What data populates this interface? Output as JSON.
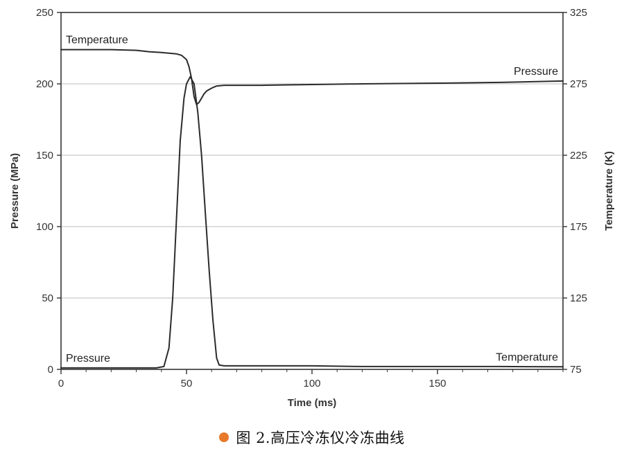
{
  "caption": {
    "text": "图 2.高压冷冻仪冷冻曲线",
    "bullet_color": "#e8782a"
  },
  "colors": {
    "line": "#2b2b2b",
    "axis": "#333333",
    "grid": "#bbbbbb",
    "plot_background": "#ffffff"
  },
  "chart_data": {
    "type": "line",
    "title": "",
    "xlabel": "Time (ms)",
    "ylabel": "Pressure (MPa)",
    "y2label": "Temperature (K)",
    "xlim": [
      0,
      200
    ],
    "ylim": [
      0,
      250
    ],
    "y2lim": [
      75,
      325
    ],
    "x_ticks": [
      0,
      50,
      100,
      150
    ],
    "y_ticks": [
      0,
      50,
      100,
      150,
      200,
      250
    ],
    "y2_ticks": [
      75,
      125,
      175,
      225,
      275,
      325
    ],
    "grid": true,
    "grid_axis": "y",
    "series": [
      {
        "name": "Pressure",
        "axis": "left",
        "x": [
          0,
          10,
          20,
          30,
          38,
          41,
          43,
          44.5,
          46,
          47.5,
          49,
          50,
          51.5,
          53,
          54.5,
          56,
          57.5,
          59,
          60.5,
          62,
          63,
          65,
          70,
          80,
          100,
          120,
          150,
          175,
          200
        ],
        "y": [
          1,
          1,
          1,
          1,
          1,
          2,
          15,
          50,
          105,
          160,
          190,
          200,
          205,
          200,
          180,
          150,
          110,
          70,
          35,
          8,
          3,
          2.5,
          2.5,
          2.5,
          2.5,
          2,
          2,
          2,
          1.8
        ]
      },
      {
        "name": "Temperature",
        "axis": "right",
        "x": [
          0,
          10,
          20,
          30,
          35,
          40,
          43,
          46,
          48,
          50,
          51,
          52,
          53,
          54,
          55,
          56,
          57,
          58,
          60,
          62,
          65,
          70,
          80,
          100,
          120,
          150,
          175,
          200
        ],
        "y": [
          299,
          299,
          299,
          298.5,
          297.5,
          297,
          296.5,
          296,
          295,
          292,
          287,
          279,
          266,
          260.5,
          262,
          265,
          268,
          270,
          272,
          273.5,
          274,
          274,
          274,
          274.5,
          275,
          275.5,
          276,
          277
        ]
      }
    ],
    "annotations": [
      {
        "text": "Temperature",
        "near_series": "Temperature",
        "anchor": "start"
      },
      {
        "text": "Pressure",
        "near_series": "Pressure",
        "anchor": "start"
      },
      {
        "text": "Pressure",
        "near_series": "Temperature",
        "anchor": "end"
      },
      {
        "text": "Temperature",
        "near_series": "Pressure",
        "anchor": "end"
      }
    ]
  }
}
